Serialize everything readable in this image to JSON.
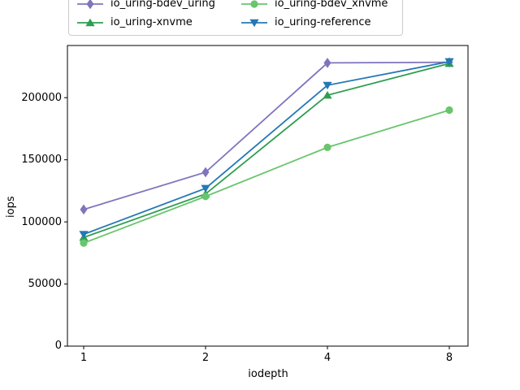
{
  "figure": {
    "background": "#ffffff"
  },
  "chart_data": {
    "type": "line",
    "title": "",
    "xlabel": "iodepth",
    "ylabel": "iops",
    "x": [
      1,
      2,
      4,
      8
    ],
    "x_axis_note": "log2 scale, equally spaced ticks",
    "x_tick_labels": [
      "1",
      "2",
      "4",
      "8"
    ],
    "y_tick_labels": [
      "0",
      "50000",
      "100000",
      "150000",
      "200000"
    ],
    "ylim": [
      0,
      242000
    ],
    "grid": false,
    "legend": {
      "position": "top-left, outside axes, clipped at figure top",
      "columns": 2,
      "order": "column-major"
    },
    "series": [
      {
        "name": "io_uring-bdev_uring",
        "marker": "diamond",
        "color": "#8074bc",
        "values": [
          110000,
          140000,
          228000,
          228500
        ]
      },
      {
        "name": "io_uring-xnvme",
        "marker": "triangle-up",
        "color": "#2e9e50",
        "values": [
          87500,
          122500,
          202000,
          227500
        ]
      },
      {
        "name": "io_uring-bdev_xnvme",
        "marker": "circle",
        "color": "#68c56c",
        "values": [
          83000,
          120500,
          160000,
          190000
        ]
      },
      {
        "name": "io_uring-reference",
        "marker": "triangle-down",
        "color": "#2478b5",
        "values": [
          90000,
          127000,
          210000,
          229000
        ]
      }
    ]
  }
}
